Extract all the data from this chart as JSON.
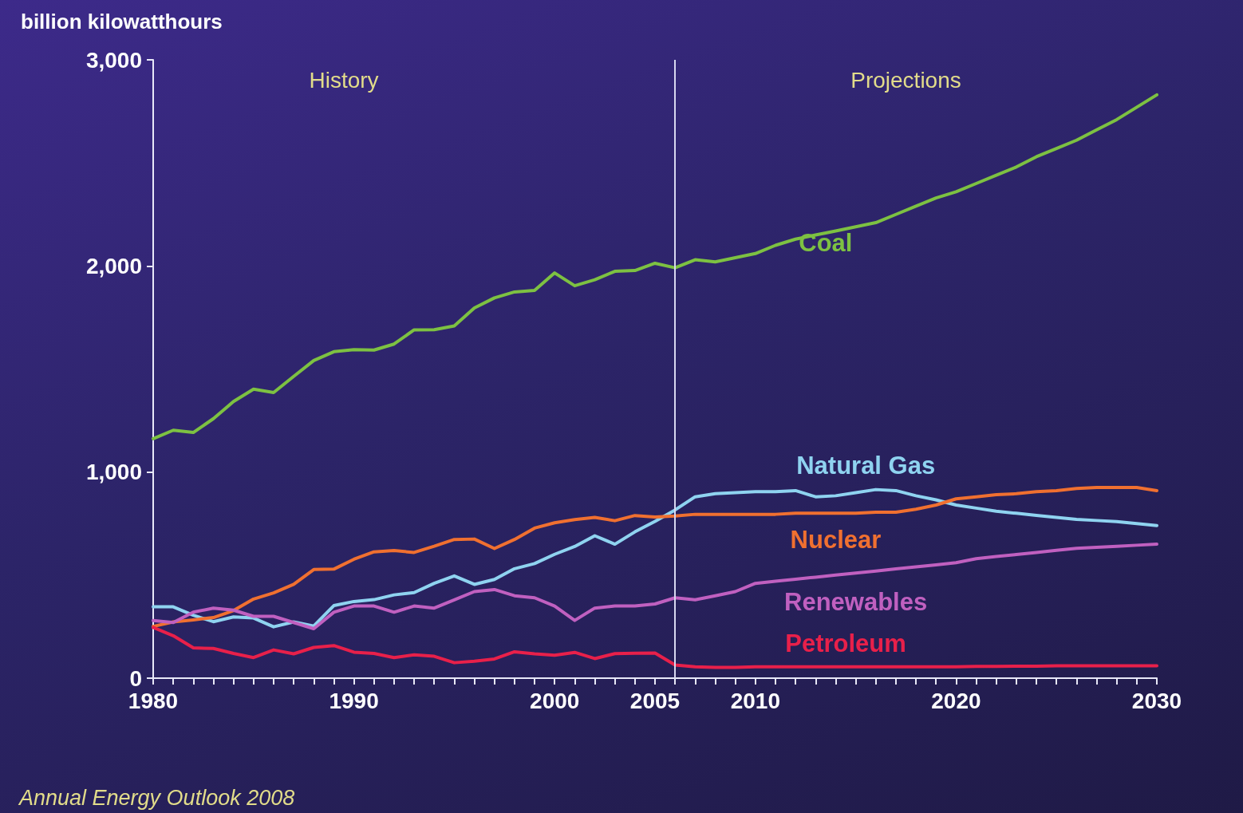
{
  "chart_data": {
    "type": "line",
    "ylabel": "billion kilowatthours",
    "x": [
      1980,
      1981,
      1982,
      1983,
      1984,
      1985,
      1986,
      1987,
      1988,
      1989,
      1990,
      1991,
      1992,
      1993,
      1994,
      1995,
      1996,
      1997,
      1998,
      1999,
      2000,
      2001,
      2002,
      2003,
      2004,
      2005,
      2006,
      2007,
      2008,
      2009,
      2010,
      2011,
      2012,
      2013,
      2014,
      2015,
      2016,
      2017,
      2018,
      2019,
      2020,
      2021,
      2022,
      2023,
      2024,
      2025,
      2026,
      2027,
      2028,
      2029,
      2030
    ],
    "series": [
      {
        "name": "Coal",
        "color": "#7dc142",
        "values": [
          1162,
          1203,
          1192,
          1259,
          1342,
          1402,
          1386,
          1464,
          1541,
          1584,
          1594,
          1592,
          1621,
          1690,
          1691,
          1709,
          1796,
          1845,
          1874,
          1881,
          1966,
          1904,
          1933,
          1974,
          1978,
          2013,
          1991,
          2030,
          2020,
          2040,
          2060,
          2100,
          2130,
          2150,
          2170,
          2190,
          2210,
          2250,
          2290,
          2330,
          2360,
          2400,
          2440,
          2480,
          2530,
          2570,
          2610,
          2660,
          2710,
          2770,
          2830
        ]
      },
      {
        "name": "Natural Gas",
        "color": "#8fd3f0",
        "values": [
          346,
          346,
          305,
          274,
          297,
          292,
          249,
          273,
          253,
          352,
          372,
          381,
          404,
          415,
          460,
          496,
          455,
          479,
          531,
          556,
          601,
          639,
          691,
          650,
          710,
          761,
          816,
          880,
          895,
          900,
          905,
          905,
          910,
          880,
          885,
          900,
          915,
          910,
          885,
          865,
          840,
          825,
          810,
          800,
          790,
          780,
          770,
          765,
          760,
          750,
          740
        ]
      },
      {
        "name": "Nuclear",
        "color": "#f07030",
        "values": [
          251,
          273,
          283,
          294,
          328,
          384,
          414,
          455,
          527,
          529,
          577,
          613,
          619,
          610,
          640,
          673,
          675,
          629,
          673,
          728,
          754,
          769,
          780,
          764,
          789,
          782,
          787,
          795,
          795,
          795,
          795,
          795,
          800,
          800,
          800,
          800,
          805,
          805,
          820,
          840,
          870,
          880,
          890,
          895,
          905,
          910,
          920,
          925,
          925,
          925,
          910
        ]
      },
      {
        "name": "Renewables",
        "color": "#c060c0",
        "values": [
          280,
          270,
          320,
          340,
          330,
          300,
          300,
          270,
          240,
          320,
          350,
          350,
          320,
          350,
          340,
          380,
          420,
          430,
          400,
          390,
          350,
          280,
          340,
          350,
          350,
          360,
          390,
          380,
          400,
          420,
          460,
          470,
          480,
          490,
          500,
          510,
          520,
          530,
          540,
          550,
          560,
          580,
          590,
          600,
          610,
          620,
          630,
          635,
          640,
          645,
          650
        ]
      },
      {
        "name": "Petroleum",
        "color": "#e8204a",
        "values": [
          246,
          206,
          147,
          144,
          120,
          100,
          137,
          118,
          149,
          158,
          126,
          120,
          100,
          113,
          106,
          75,
          82,
          93,
          128,
          118,
          111,
          125,
          95,
          119,
          121,
          122,
          64,
          55,
          52,
          52,
          55,
          55,
          55,
          55,
          55,
          55,
          55,
          55,
          55,
          55,
          55,
          57,
          57,
          58,
          58,
          60,
          60,
          60,
          60,
          60,
          60
        ]
      }
    ],
    "xlim": [
      1980,
      2030
    ],
    "xticks": [
      1980,
      {
        "value": 1981,
        "label": null
      },
      {
        "value": 1982,
        "label": null
      },
      {
        "value": 1983,
        "label": null
      },
      {
        "value": 1984,
        "label": null
      },
      {
        "value": 1985,
        "label": null
      },
      {
        "value": 1986,
        "label": null
      },
      {
        "value": 1987,
        "label": null
      },
      {
        "value": 1988,
        "label": null
      },
      {
        "value": 1989,
        "label": null
      },
      1990,
      {
        "value": 1991,
        "label": null
      },
      {
        "value": 1992,
        "label": null
      },
      {
        "value": 1993,
        "label": null
      },
      {
        "value": 1994,
        "label": null
      },
      {
        "value": 1995,
        "label": null
      },
      {
        "value": 1996,
        "label": null
      },
      {
        "value": 1997,
        "label": null
      },
      {
        "value": 1998,
        "label": null
      },
      {
        "value": 1999,
        "label": null
      },
      2000,
      {
        "value": 2001,
        "label": null
      },
      {
        "value": 2002,
        "label": null
      },
      {
        "value": 2003,
        "label": null
      },
      {
        "value": 2004,
        "label": null
      },
      2005,
      {
        "value": 2006,
        "label": null
      },
      {
        "value": 2007,
        "label": null
      },
      {
        "value": 2008,
        "label": null
      },
      {
        "value": 2009,
        "label": null
      },
      2010,
      {
        "value": 2011,
        "label": null
      },
      {
        "value": 2012,
        "label": null
      },
      {
        "value": 2013,
        "label": null
      },
      {
        "value": 2014,
        "label": null
      },
      {
        "value": 2015,
        "label": null
      },
      {
        "value": 2016,
        "label": null
      },
      {
        "value": 2017,
        "label": null
      },
      {
        "value": 2018,
        "label": null
      },
      {
        "value": 2019,
        "label": null
      },
      2020,
      {
        "value": 2021,
        "label": null
      },
      {
        "value": 2022,
        "label": null
      },
      {
        "value": 2023,
        "label": null
      },
      {
        "value": 2024,
        "label": null
      },
      {
        "value": 2025,
        "label": null
      },
      {
        "value": 2026,
        "label": null
      },
      {
        "value": 2027,
        "label": null
      },
      {
        "value": 2028,
        "label": null
      },
      {
        "value": 2029,
        "label": null
      },
      2030
    ],
    "ylim": [
      0,
      3000
    ],
    "yticks": [
      0,
      {
        "value": 1000,
        "label": "1,000"
      },
      {
        "value": 2000,
        "label": "2,000"
      },
      {
        "value": 3000,
        "label": "3,000"
      }
    ],
    "ref_lines": [
      {
        "axis": "x",
        "value": 2006,
        "color": "#d8d8f0"
      }
    ],
    "annotations": [
      "History",
      "Projections",
      "Annual Energy Outlook 2008"
    ],
    "grid": false,
    "legend": false,
    "marker": "none",
    "line_style": "solid"
  }
}
